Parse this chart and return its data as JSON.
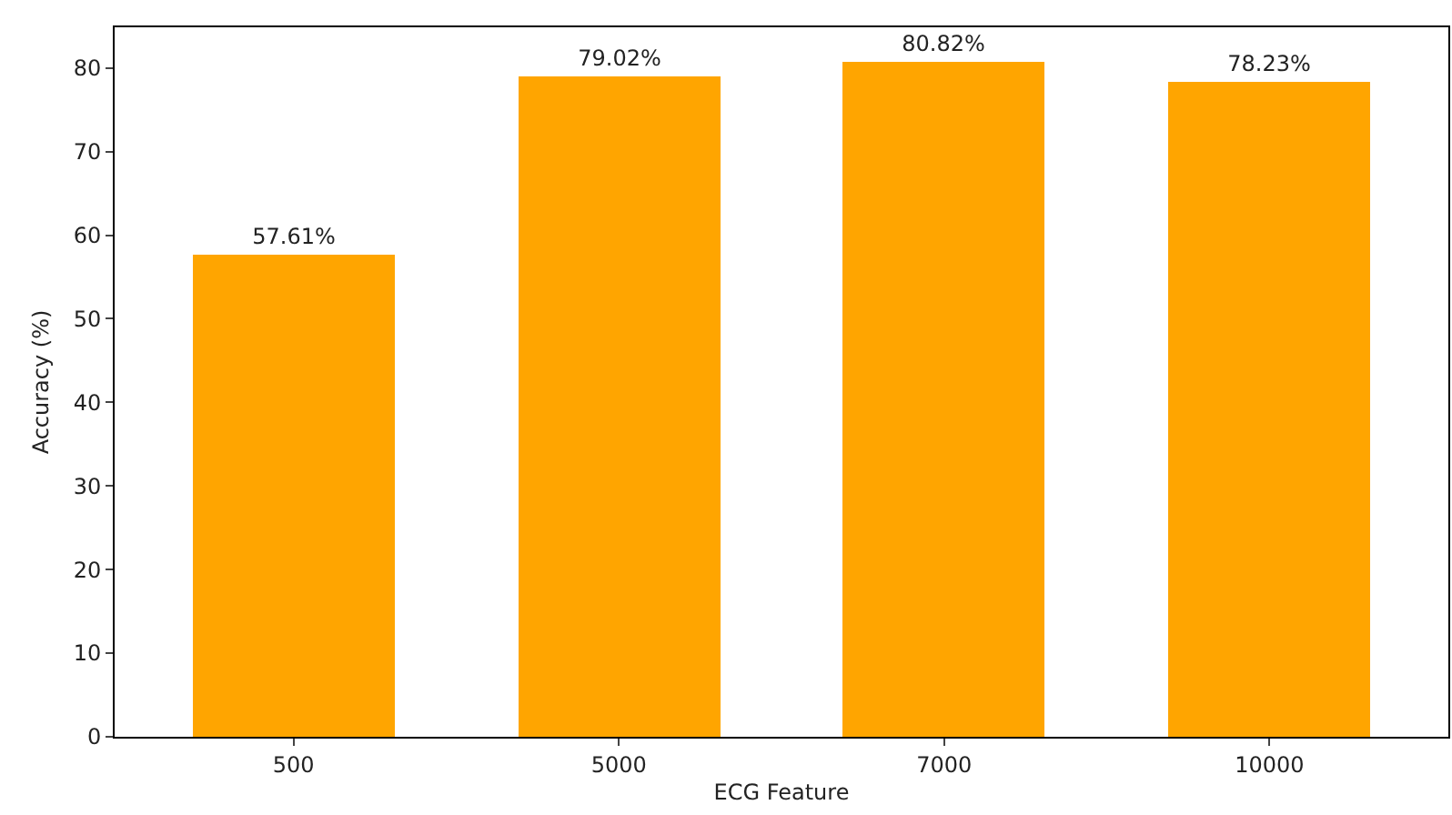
{
  "chart_data": {
    "type": "bar",
    "xlabel": "ECG Feature",
    "ylabel": "Accuracy (%)",
    "categories": [
      "500",
      "5000",
      "7000",
      "10000"
    ],
    "values": [
      57.61,
      79.02,
      80.82,
      78.23
    ],
    "value_labels": [
      "57.61%",
      "79.02%",
      "80.82%",
      "78.23%"
    ],
    "color": "#ffa500",
    "ylim": [
      0,
      84.86
    ],
    "yticks": [
      0,
      10,
      20,
      30,
      40,
      50,
      60,
      70,
      80
    ],
    "grid": false
  }
}
